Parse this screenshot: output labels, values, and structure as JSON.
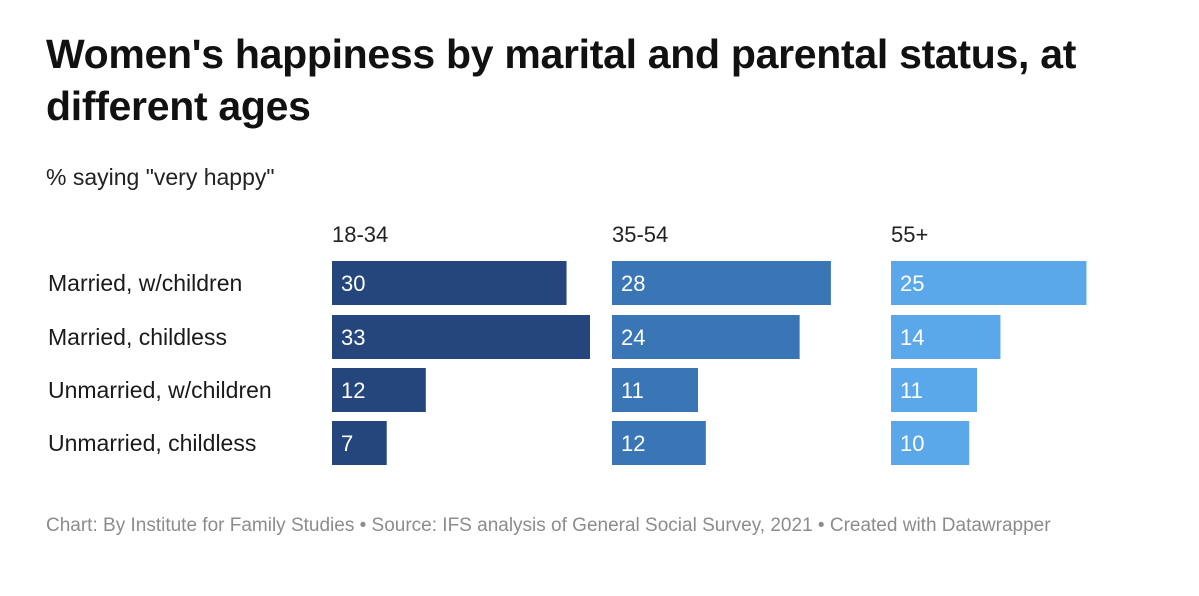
{
  "title": "Women's happiness by marital and parental status, at different ages",
  "subtitle": "% saying \"very happy\"",
  "footer": "Chart: By Institute for Family Studies • Source: IFS analysis of General Social Survey, 2021 • Created with Datawrapper",
  "colors": {
    "panel_1": "#24467c",
    "panel_2": "#3a75b5",
    "panel_3": "#5aa8ea",
    "bar_text": "#ffffff"
  },
  "chart_data": {
    "type": "bar",
    "orientation": "horizontal",
    "layout": "small-multiples",
    "categories": [
      "Married, w/children",
      "Married, childless",
      "Unmarried, w/children",
      "Unmarried, childless"
    ],
    "series": [
      {
        "name": "18-34",
        "values": [
          30,
          33,
          12,
          7
        ]
      },
      {
        "name": "35-54",
        "values": [
          28,
          24,
          11,
          12
        ]
      },
      {
        "name": "55+",
        "values": [
          25,
          14,
          11,
          10
        ]
      }
    ],
    "xlim": [
      0,
      33
    ],
    "grid": false,
    "legend": "none",
    "data_labels": "inside-left"
  }
}
